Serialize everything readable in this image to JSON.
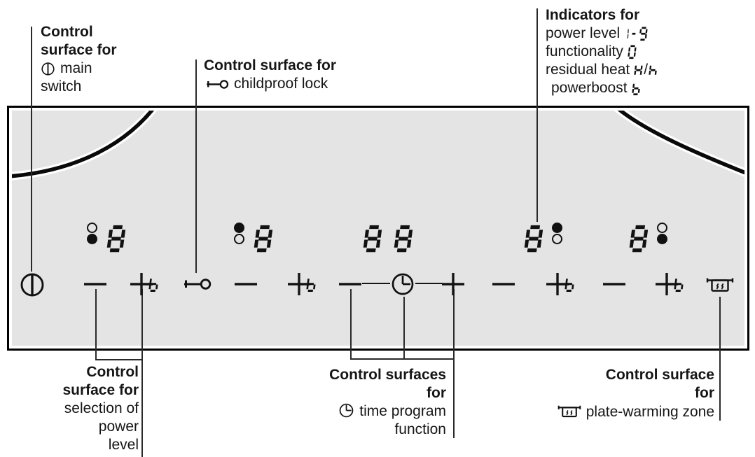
{
  "colors": {
    "panel_fill": "#e4e4e4",
    "panel_border": "#000000",
    "ink": "#111111",
    "leader_line": "#2a2a2a"
  },
  "callouts": {
    "main_switch": {
      "bold_lines": [
        "Control",
        "surface for"
      ],
      "icon": "power-symbol",
      "text_lines": [
        "main",
        "switch"
      ]
    },
    "childproof_lock": {
      "bold_line": "Control surface for",
      "icon": "key-symbol",
      "text": "childproof lock"
    },
    "indicators": {
      "title": "Indicators for",
      "rows": [
        {
          "text": "power level",
          "seg": "1-9"
        },
        {
          "text": "functionality",
          "seg": "0"
        },
        {
          "text": "residual heat",
          "seg": "H/h"
        },
        {
          "text": "powerboost",
          "seg": "b"
        }
      ]
    },
    "power_level": {
      "bold_lines": [
        "Control",
        "surface for"
      ],
      "text_lines": [
        "selection of",
        "power",
        "level"
      ]
    },
    "time_program": {
      "bold_lines": [
        "Control surfaces",
        "for"
      ],
      "icon": "clock-symbol",
      "text_lines": [
        "time program",
        "function"
      ]
    },
    "plate_warming": {
      "bold_lines": [
        "Control surface",
        "for"
      ],
      "icon": "pot-symbol",
      "text": "plate-warming zone"
    }
  },
  "panel": {
    "displays": [
      {
        "zone": "zone1",
        "digits": "8",
        "dots_side": "left",
        "dot_top": "open",
        "dot_bottom": "filled"
      },
      {
        "zone": "zone2",
        "digits": "8",
        "dots_side": "left",
        "dot_top": "filled",
        "dot_bottom": "open"
      },
      {
        "zone": "timer",
        "digits": "88",
        "dots_side": "none",
        "dot_top": "",
        "dot_bottom": ""
      },
      {
        "zone": "zone4",
        "digits": "8",
        "dots_side": "right",
        "dot_top": "filled",
        "dot_bottom": "open"
      },
      {
        "zone": "zone5",
        "digits": "8",
        "dots_side": "right",
        "dot_top": "open",
        "dot_bottom": "filled"
      }
    ],
    "controls": {
      "minus_label": "−",
      "plus_label": "+",
      "boost_char": "b",
      "main_switch_icon": "power-symbol",
      "childproof_lock_icon": "key-symbol",
      "timer_icon": "clock-symbol",
      "plate_warming_icon": "pot-symbol"
    }
  }
}
